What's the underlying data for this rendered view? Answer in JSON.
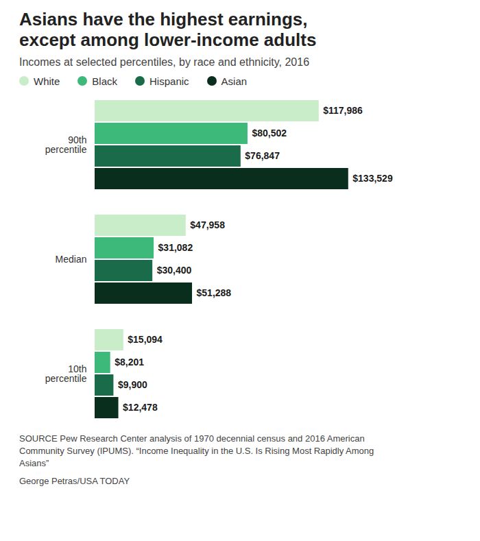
{
  "chart_data": {
    "type": "bar",
    "orientation": "horizontal",
    "title": "Asians have the highest earnings,\nexcept among lower-income adults",
    "subtitle": "Incomes at selected percentiles, by race and ethnicity, 2016",
    "categories": [
      "90th\npercentile",
      "Median",
      "10th\npercentile"
    ],
    "series": [
      {
        "name": "White",
        "color": "#c8edc8",
        "values": [
          117986,
          47958,
          15094
        ],
        "value_labels": [
          "$117,986",
          "$47,958",
          "$15,094"
        ]
      },
      {
        "name": "Black",
        "color": "#3dba7a",
        "values": [
          80502,
          31082,
          8201
        ],
        "value_labels": [
          "$80,502",
          "$31,082",
          "$8,201"
        ]
      },
      {
        "name": "Hispanic",
        "color": "#1a6b4a",
        "values": [
          76847,
          30400,
          9900
        ],
        "value_labels": [
          "$76,847",
          "$30,400",
          "$9,900"
        ]
      },
      {
        "name": "Asian",
        "color": "#0a2e1e",
        "values": [
          133529,
          51288,
          12478
        ],
        "value_labels": [
          "$133,529",
          "$51,288",
          "$12,478"
        ]
      }
    ],
    "xlim": [
      0,
      185600
    ],
    "data_labels": true,
    "tick_labels": "y",
    "grid": false,
    "legend": "top",
    "annotations": [
      "SOURCE Pew Research Center analysis of 1970 decennial census and 2016 American\nCommunity Survey (IPUMS). “Income Inequality in the U.S. Is Rising Most Rapidly Among\nAsians”",
      "George Petras/USA TODAY"
    ]
  }
}
